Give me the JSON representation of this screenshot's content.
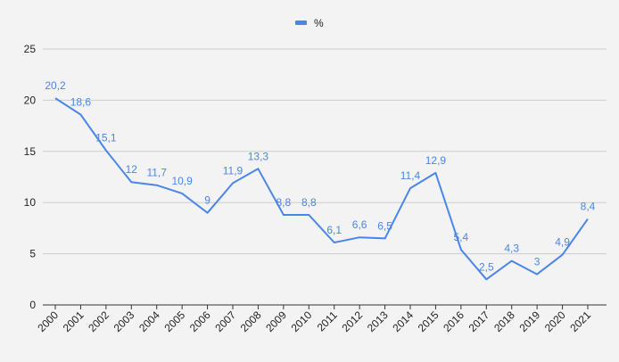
{
  "chart_data": {
    "type": "line",
    "title": "",
    "xlabel": "",
    "ylabel": "",
    "ylim": [
      0,
      25
    ],
    "yticks": [
      0,
      5,
      10,
      15,
      20,
      25
    ],
    "grid": true,
    "legend_position": "top-center",
    "categories": [
      "2000",
      "2001",
      "2002",
      "2003",
      "2004",
      "2005",
      "2006",
      "2007",
      "2008",
      "2009",
      "2010",
      "2011",
      "2012",
      "2013",
      "2014",
      "2015",
      "2016",
      "2017",
      "2018",
      "2019",
      "2020",
      "2021"
    ],
    "series": [
      {
        "name": "%",
        "color": "#4a86e8",
        "values": [
          20.2,
          18.6,
          15.1,
          12,
          11.7,
          10.9,
          9,
          11.9,
          13.3,
          8.8,
          8.8,
          6.1,
          6.6,
          6.5,
          11.4,
          12.9,
          5.4,
          2.5,
          4.3,
          3,
          4.9,
          8.4
        ],
        "labels": [
          "20,2",
          "18,6",
          "15,1",
          "12",
          "11,7",
          "10,9",
          "9",
          "11,9",
          "13,3",
          "8,8",
          "8,8",
          "6,1",
          "6,6",
          "6,5",
          "11,4",
          "12,9",
          "5,4",
          "2,5",
          "4,3",
          "3",
          "4,9",
          "8,4"
        ]
      }
    ]
  }
}
